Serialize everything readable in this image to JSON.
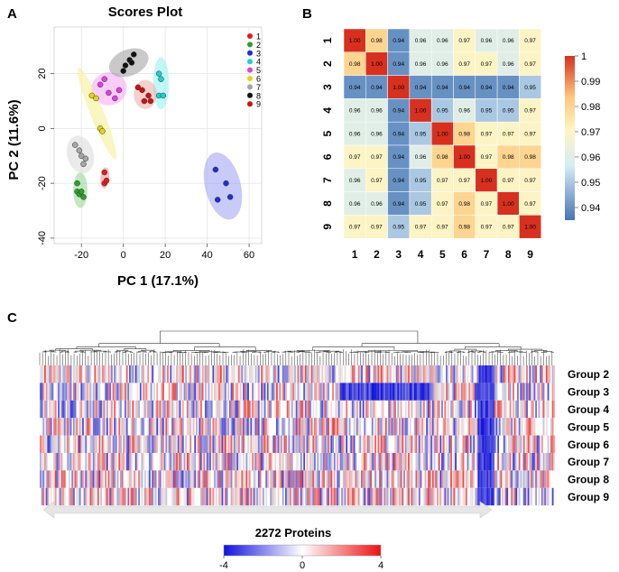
{
  "panels": {
    "a": "A",
    "b": "B",
    "c": "C"
  },
  "chart_data": [
    {
      "type": "scatter",
      "title": "Scores Plot",
      "xlabel": "PC 1 (17.1%)",
      "ylabel": "PC 2 (11.6%)",
      "xlim": [
        -33,
        66
      ],
      "ylim": [
        -42,
        37
      ],
      "xticks": [
        -20,
        0,
        20,
        40,
        60
      ],
      "yticks": [
        -40,
        -20,
        0,
        20
      ],
      "xtick_labels": [
        "-20",
        "0",
        "20",
        "40",
        "60"
      ],
      "ytick_labels": [
        "-40",
        "-20",
        "0",
        "20"
      ],
      "grid": true,
      "legend_position": "top-right",
      "series": [
        {
          "name": "1",
          "color": "#e41a1c",
          "ellipse_color": "#f08a8a",
          "points": [
            [
              -9,
              -16
            ],
            [
              -9,
              -20
            ],
            [
              -8,
              -19
            ]
          ],
          "ellipse": {
            "cx": -8.8,
            "cy": -18,
            "rx": 5,
            "ry": 1.6,
            "angle": -84
          }
        },
        {
          "name": "2",
          "color": "#2ca02c",
          "ellipse_color": "#8fd68f",
          "points": [
            [
              -22,
              -20
            ],
            [
              -22,
              -23
            ],
            [
              -21,
              -24
            ],
            [
              -20,
              -23
            ],
            [
              -19,
              -25
            ]
          ],
          "ellipse": {
            "cx": -20.5,
            "cy": -22.5,
            "rx": 3.4,
            "ry": 6.5,
            "angle": 0
          }
        },
        {
          "name": "3",
          "color": "#1f2fd1",
          "ellipse_color": "#9a9ff0",
          "points": [
            [
              44,
              -15
            ],
            [
              45,
              -26
            ],
            [
              49,
              -20
            ],
            [
              51,
              -25
            ]
          ],
          "ellipse": {
            "cx": 47.5,
            "cy": -21,
            "rx": 8.5,
            "ry": 12.5,
            "angle": -14
          }
        },
        {
          "name": "4",
          "color": "#1fcfcf",
          "ellipse_color": "#8ff0f0",
          "points": [
            [
              17,
              20
            ],
            [
              18,
              18
            ],
            [
              17,
              12
            ],
            [
              19,
              12
            ]
          ],
          "ellipse": {
            "cx": 18,
            "cy": 16.5,
            "rx": 3.8,
            "ry": 9.5,
            "angle": 0
          }
        },
        {
          "name": "5",
          "color": "#e040e0",
          "ellipse_color": "#f4a3f4",
          "points": [
            [
              -11,
              16
            ],
            [
              -9,
              18
            ],
            [
              -7,
              13
            ],
            [
              -4,
              11
            ],
            [
              -2,
              14
            ]
          ],
          "ellipse": {
            "cx": -6.8,
            "cy": 14.5,
            "rx": 8.5,
            "ry": 6,
            "angle": -8
          }
        },
        {
          "name": "6",
          "color": "#e8d21a",
          "ellipse_color": "#f6ef90",
          "points": [
            [
              -15,
              12
            ],
            [
              -13,
              11
            ],
            [
              -11,
              0
            ],
            [
              -10,
              -1
            ]
          ],
          "ellipse": {
            "cx": -12.5,
            "cy": 5.5,
            "rx": 3.2,
            "ry": 18,
            "angle": -22
          }
        },
        {
          "name": "7",
          "color": "#a6a6a6",
          "ellipse_color": "#d8d8d8",
          "points": [
            [
              -23,
              -6
            ],
            [
              -21,
              -8
            ],
            [
              -20,
              -10
            ],
            [
              -19,
              -13
            ],
            [
              -18,
              -11
            ]
          ],
          "ellipse": {
            "cx": -20.5,
            "cy": -9.5,
            "rx": 6.3,
            "ry": 7,
            "angle": -15
          }
        },
        {
          "name": "8",
          "color": "#111111",
          "ellipse_color": "#9c9c9c",
          "points": [
            [
              0,
              21
            ],
            [
              1,
              23
            ],
            [
              3,
              25
            ],
            [
              4,
              24
            ],
            [
              5,
              27
            ]
          ],
          "ellipse": {
            "cx": 2.6,
            "cy": 24,
            "rx": 9.8,
            "ry": 4.8,
            "angle": -22
          }
        },
        {
          "name": "9",
          "color": "#d01010",
          "ellipse_color": "#f0a8a8",
          "points": [
            [
              7,
              15
            ],
            [
              9,
              14
            ],
            [
              10,
              10
            ],
            [
              12,
              12
            ],
            [
              13,
              10
            ]
          ],
          "ellipse": {
            "cx": 10.5,
            "cy": 12.4,
            "rx": 5.5,
            "ry": 5.3,
            "angle": 0
          }
        }
      ]
    },
    {
      "type": "heatmap",
      "labels": [
        "1",
        "2",
        "3",
        "4",
        "5",
        "6",
        "7",
        "8",
        "9"
      ],
      "matrix": [
        [
          "1.00",
          "0.98",
          "0.94",
          "0.96",
          "0.96",
          "0.97",
          "0.96",
          "0.96",
          "0.97"
        ],
        [
          "0.98",
          "1.00",
          "0.94",
          "0.96",
          "0.96",
          "0.97",
          "0.97",
          "0.96",
          "0.97"
        ],
        [
          "0.94",
          "0.94",
          "1.00",
          "0.94",
          "0.94",
          "0.94",
          "0.94",
          "0.94",
          "0.95"
        ],
        [
          "0.96",
          "0.96",
          "0.94",
          "1.00",
          "0.95",
          "0.96",
          "0.95",
          "0.95",
          "0.97"
        ],
        [
          "0.96",
          "0.96",
          "0.94",
          "0.95",
          "1.00",
          "0.98",
          "0.97",
          "0.97",
          "0.97"
        ],
        [
          "0.97",
          "0.97",
          "0.94",
          "0.96",
          "0.98",
          "1.00",
          "0.97",
          "0.98",
          "0.98"
        ],
        [
          "0.96",
          "0.97",
          "0.94",
          "0.95",
          "0.97",
          "0.97",
          "1.00",
          "0.97",
          "0.97"
        ],
        [
          "0.96",
          "0.96",
          "0.94",
          "0.95",
          "0.97",
          "0.98",
          "0.97",
          "1.00",
          "0.97"
        ],
        [
          "0.97",
          "0.97",
          "0.95",
          "0.97",
          "0.97",
          "0.98",
          "0.97",
          "0.97",
          "1.00"
        ]
      ],
      "colorbar": {
        "min": 0.935,
        "max": 1.0,
        "ticks": [
          "1",
          "0.99",
          "0.98",
          "0.97",
          "0.96",
          "0.95",
          "0.94"
        ],
        "tick_values": [
          1.0,
          0.99,
          0.98,
          0.97,
          0.96,
          0.95,
          0.94
        ]
      }
    },
    {
      "type": "heatmap",
      "title": "2272 Proteins",
      "rows": [
        "Group 2",
        "Group 3",
        "Group 4",
        "Group 5",
        "Group 6",
        "Group 7",
        "Group 8",
        "Group 9"
      ],
      "n_columns": 2272,
      "colorbar": {
        "min": -4,
        "max": 4,
        "ticks": [
          "-4",
          "0",
          "4"
        ],
        "colors": [
          "#1111dd",
          "#ffffff",
          "#ee1111"
        ]
      },
      "highlights": [
        {
          "row": "Group 3",
          "from": 0.58,
          "to": 0.76,
          "sign": "negative",
          "note": "dense blue block"
        },
        {
          "row": "all",
          "from": 0.85,
          "to": 0.88,
          "sign": "negative",
          "note": "blue band across groups"
        }
      ]
    }
  ]
}
